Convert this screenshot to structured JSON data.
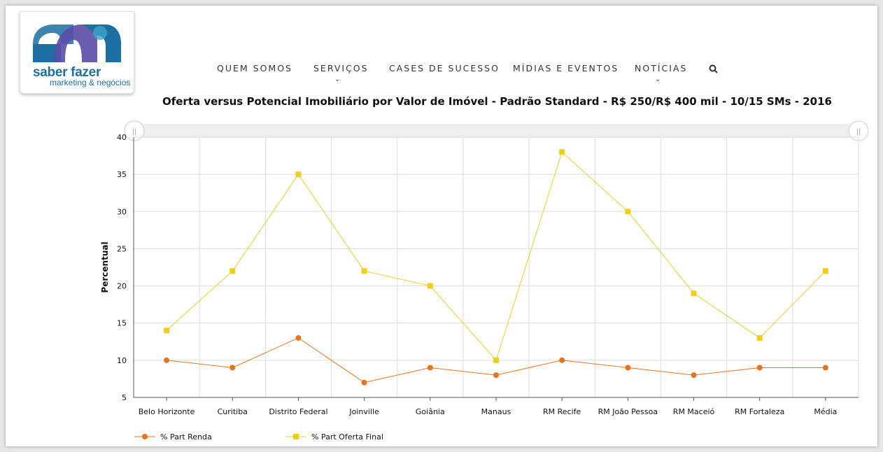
{
  "brand": {
    "name": "saber fazer",
    "tagline": "marketing & negócios",
    "colors": {
      "dark": "#1b6fa3",
      "mid": "#3fa3c9",
      "accent": "#5b4ca8"
    }
  },
  "nav": {
    "items": [
      "QUEM SOMOS",
      "SERVIÇOS",
      "CASES DE SUCESSO",
      "MÍDIAS E EVENTOS",
      "NOTÍCIAS"
    ],
    "dropdown_chevron": "⌄",
    "search_icon": "search-icon"
  },
  "chart_data": {
    "type": "line",
    "title": "Oferta versus Potencial Imobiliário por Valor de Imóvel - Padrão Standard - R$ 250/R$ 400 mil - 10/15 SMs - 2016",
    "xlabel": "",
    "ylabel": "Percentual",
    "ylim": [
      5,
      40
    ],
    "yticks": [
      5,
      10,
      15,
      20,
      25,
      30,
      35,
      40
    ],
    "grid": true,
    "legend_position": "bottom-left",
    "categories": [
      "Belo Horizonte",
      "Curitiba",
      "Distrito Federal",
      "Joinville",
      "Goiânia",
      "Manaus",
      "RM Recife",
      "RM João Pessoa",
      "RM Maceió",
      "RM Fortaleza",
      "Média"
    ],
    "series": [
      {
        "name": "% Part Renda",
        "marker": "circle",
        "color": "#e8731a",
        "values": [
          10,
          9,
          13,
          7,
          9,
          8,
          10,
          9,
          8,
          9,
          9
        ]
      },
      {
        "name": "% Part Oferta Final",
        "marker": "square",
        "color": "#f2cf17",
        "values": [
          14,
          22,
          35,
          22,
          20,
          10,
          38,
          30,
          19,
          13,
          22
        ]
      }
    ],
    "slider_handle_label": "||"
  }
}
